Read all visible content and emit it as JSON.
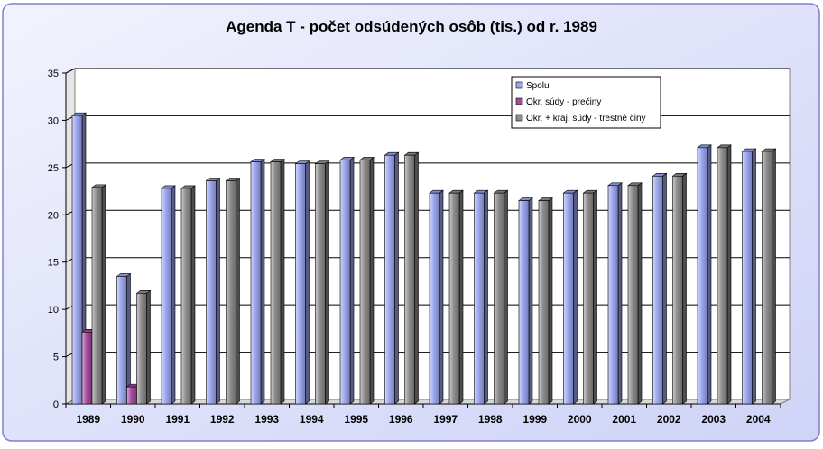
{
  "chart_data": {
    "type": "bar",
    "title": "Agenda T - počet odsúdených osôb (tis.) od r. 1989",
    "categories": [
      "1989",
      "1990",
      "1991",
      "1992",
      "1993",
      "1994",
      "1995",
      "1996",
      "1997",
      "1998",
      "1999",
      "2000",
      "2001",
      "2002",
      "2003",
      "2004"
    ],
    "series": [
      {
        "name": "Spolu",
        "values": [
          30.5,
          13.5,
          22.8,
          23.6,
          25.6,
          25.4,
          25.8,
          26.3,
          22.3,
          22.3,
          21.5,
          22.3,
          23.1,
          24.1,
          27.1,
          26.7
        ]
      },
      {
        "name": "Okr. súdy - prečiny",
        "values": [
          7.6,
          1.8,
          null,
          null,
          null,
          null,
          null,
          null,
          null,
          null,
          null,
          null,
          null,
          null,
          null,
          null
        ]
      },
      {
        "name": "Okr. + kraj. súdy - trestné činy",
        "values": [
          22.9,
          11.7,
          22.8,
          23.6,
          25.6,
          25.4,
          25.8,
          26.3,
          22.3,
          22.3,
          21.5,
          22.3,
          23.1,
          24.1,
          27.1,
          26.7
        ]
      }
    ],
    "ylim": [
      0,
      35
    ],
    "yticks": [
      0,
      5,
      10,
      15,
      20,
      25,
      30,
      35
    ],
    "grid": true,
    "legend_position": "top-right",
    "colors": {
      "spolu": "#9aa6ee",
      "preciny": "#a64a9e",
      "trestne": "#8c8c8c",
      "frame_border": "#7f7fd0",
      "frame_fill": "#cfd3f6"
    }
  }
}
